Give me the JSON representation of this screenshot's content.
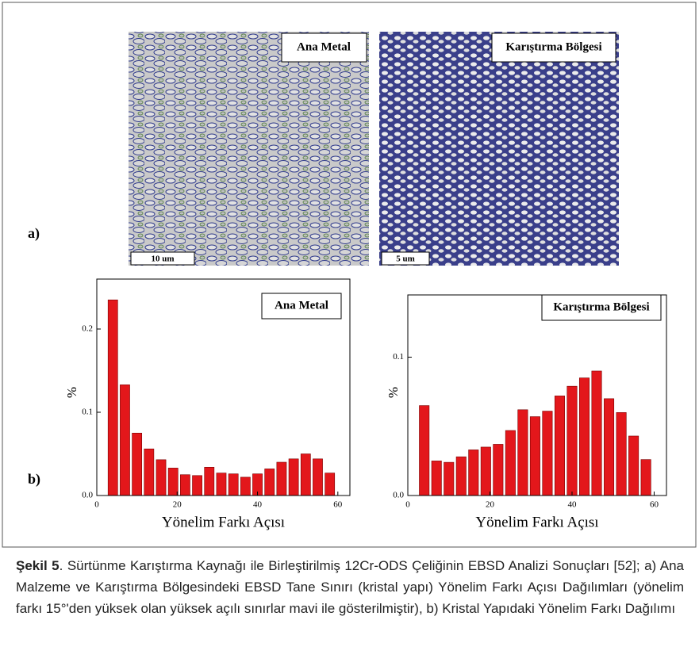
{
  "figure": {
    "panel_a": "a)",
    "panel_b": "b)",
    "images": [
      {
        "label": "Ana Metal",
        "scale": "10 um"
      },
      {
        "label": "Karıştırma Bölgesi",
        "scale": "5 um"
      }
    ]
  },
  "chart_data": [
    {
      "type": "bar",
      "annotation": "Ana Metal",
      "x_label": "Yönelim Farkı Açısı",
      "y_label": "%",
      "color": "#e3171b",
      "x": [
        4,
        7,
        10,
        13,
        16,
        19,
        22,
        25,
        28,
        31,
        34,
        37,
        40,
        43,
        46,
        49,
        52,
        55,
        58
      ],
      "values": [
        0.235,
        0.133,
        0.075,
        0.056,
        0.043,
        0.033,
        0.025,
        0.024,
        0.034,
        0.027,
        0.026,
        0.022,
        0.026,
        0.032,
        0.04,
        0.044,
        0.05,
        0.044,
        0.027
      ],
      "xlim": [
        0,
        63
      ],
      "ylim": [
        0,
        0.26
      ],
      "xticks": [
        0,
        20,
        40,
        60
      ],
      "yticks": [
        {
          "value": 0,
          "label": "0.0"
        },
        0.1,
        0.2
      ]
    },
    {
      "type": "bar",
      "annotation": "Karıştırma Bölgesi",
      "x_label": "Yönelim Farkı Açısı",
      "y_label": "%",
      "color": "#e3171b",
      "x": [
        4,
        7,
        10,
        13,
        16,
        19,
        22,
        25,
        28,
        31,
        34,
        37,
        40,
        43,
        46,
        49,
        52,
        55,
        58
      ],
      "values": [
        0.065,
        0.025,
        0.024,
        0.028,
        0.033,
        0.035,
        0.037,
        0.047,
        0.062,
        0.057,
        0.061,
        0.072,
        0.079,
        0.085,
        0.09,
        0.07,
        0.06,
        0.043,
        0.026
      ],
      "xlim": [
        0,
        63
      ],
      "ylim": [
        0,
        0.145
      ],
      "xticks": [
        0,
        20,
        40,
        60
      ],
      "yticks": [
        {
          "value": 0,
          "label": "0.0"
        },
        0.1
      ]
    }
  ],
  "caption": {
    "label": "Şekil 5",
    "text": ". Sürtünme Karıştırma Kaynağı ile Birleştirilmiş 12Cr-ODS Çeliğinin EBSD Analizi Sonuçları [52]; a) Ana Malzeme ve Karıştırma Bölgesindeki EBSD Tane Sınırı (kristal yapı) Yönelim Farkı Açısı Dağılımları (yönelim farkı 15°'den yüksek olan yüksek açılı sınırlar mavi ile gösterilmiştir), b) Kristal Yapıdaki Yönelim Farkı Dağılımı"
  }
}
